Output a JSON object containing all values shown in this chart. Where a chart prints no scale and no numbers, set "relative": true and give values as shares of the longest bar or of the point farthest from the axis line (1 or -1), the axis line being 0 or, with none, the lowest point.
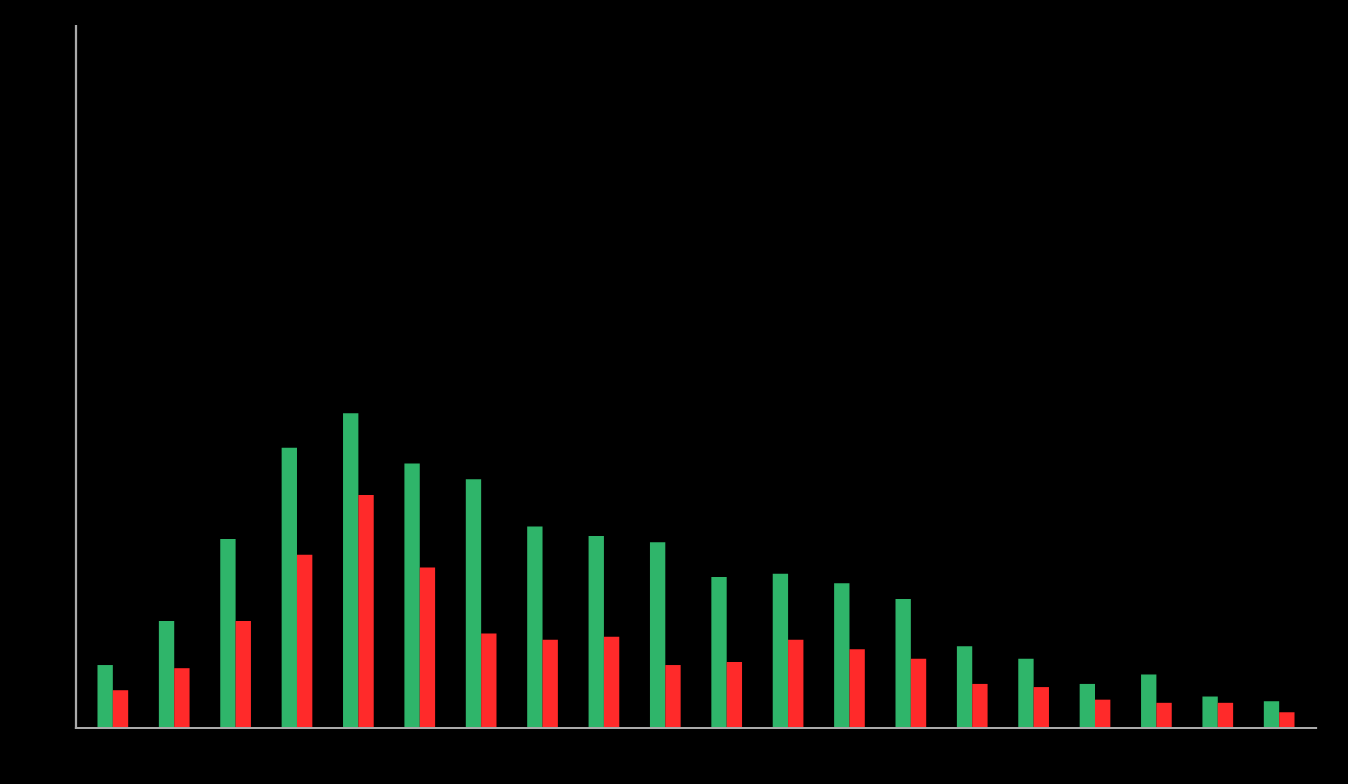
{
  "chart_data": {
    "type": "bar",
    "relative": true,
    "categories": [
      null,
      null,
      null,
      null,
      null,
      null,
      null,
      null,
      null,
      null,
      null,
      null,
      null,
      null,
      null,
      null,
      null,
      null,
      null,
      null
    ],
    "series": [
      {
        "color": "#2fb56a",
        "values": [
          0.2,
          0.34,
          0.6,
          0.89,
          1,
          0.84,
          0.79,
          0.64,
          0.61,
          0.59,
          0.48,
          0.49,
          0.46,
          0.41,
          0.26,
          0.22,
          0.14,
          0.17,
          0.1,
          0.085
        ]
      },
      {
        "color": "#ff2a2a",
        "values": [
          0.12,
          0.19,
          0.34,
          0.55,
          0.74,
          0.51,
          0.3,
          0.28,
          0.29,
          0.2,
          0.21,
          0.28,
          0.25,
          0.22,
          0.14,
          0.13,
          0.09,
          0.08,
          0.08,
          0.05
        ]
      }
    ],
    "grid": false,
    "legend": false
  }
}
